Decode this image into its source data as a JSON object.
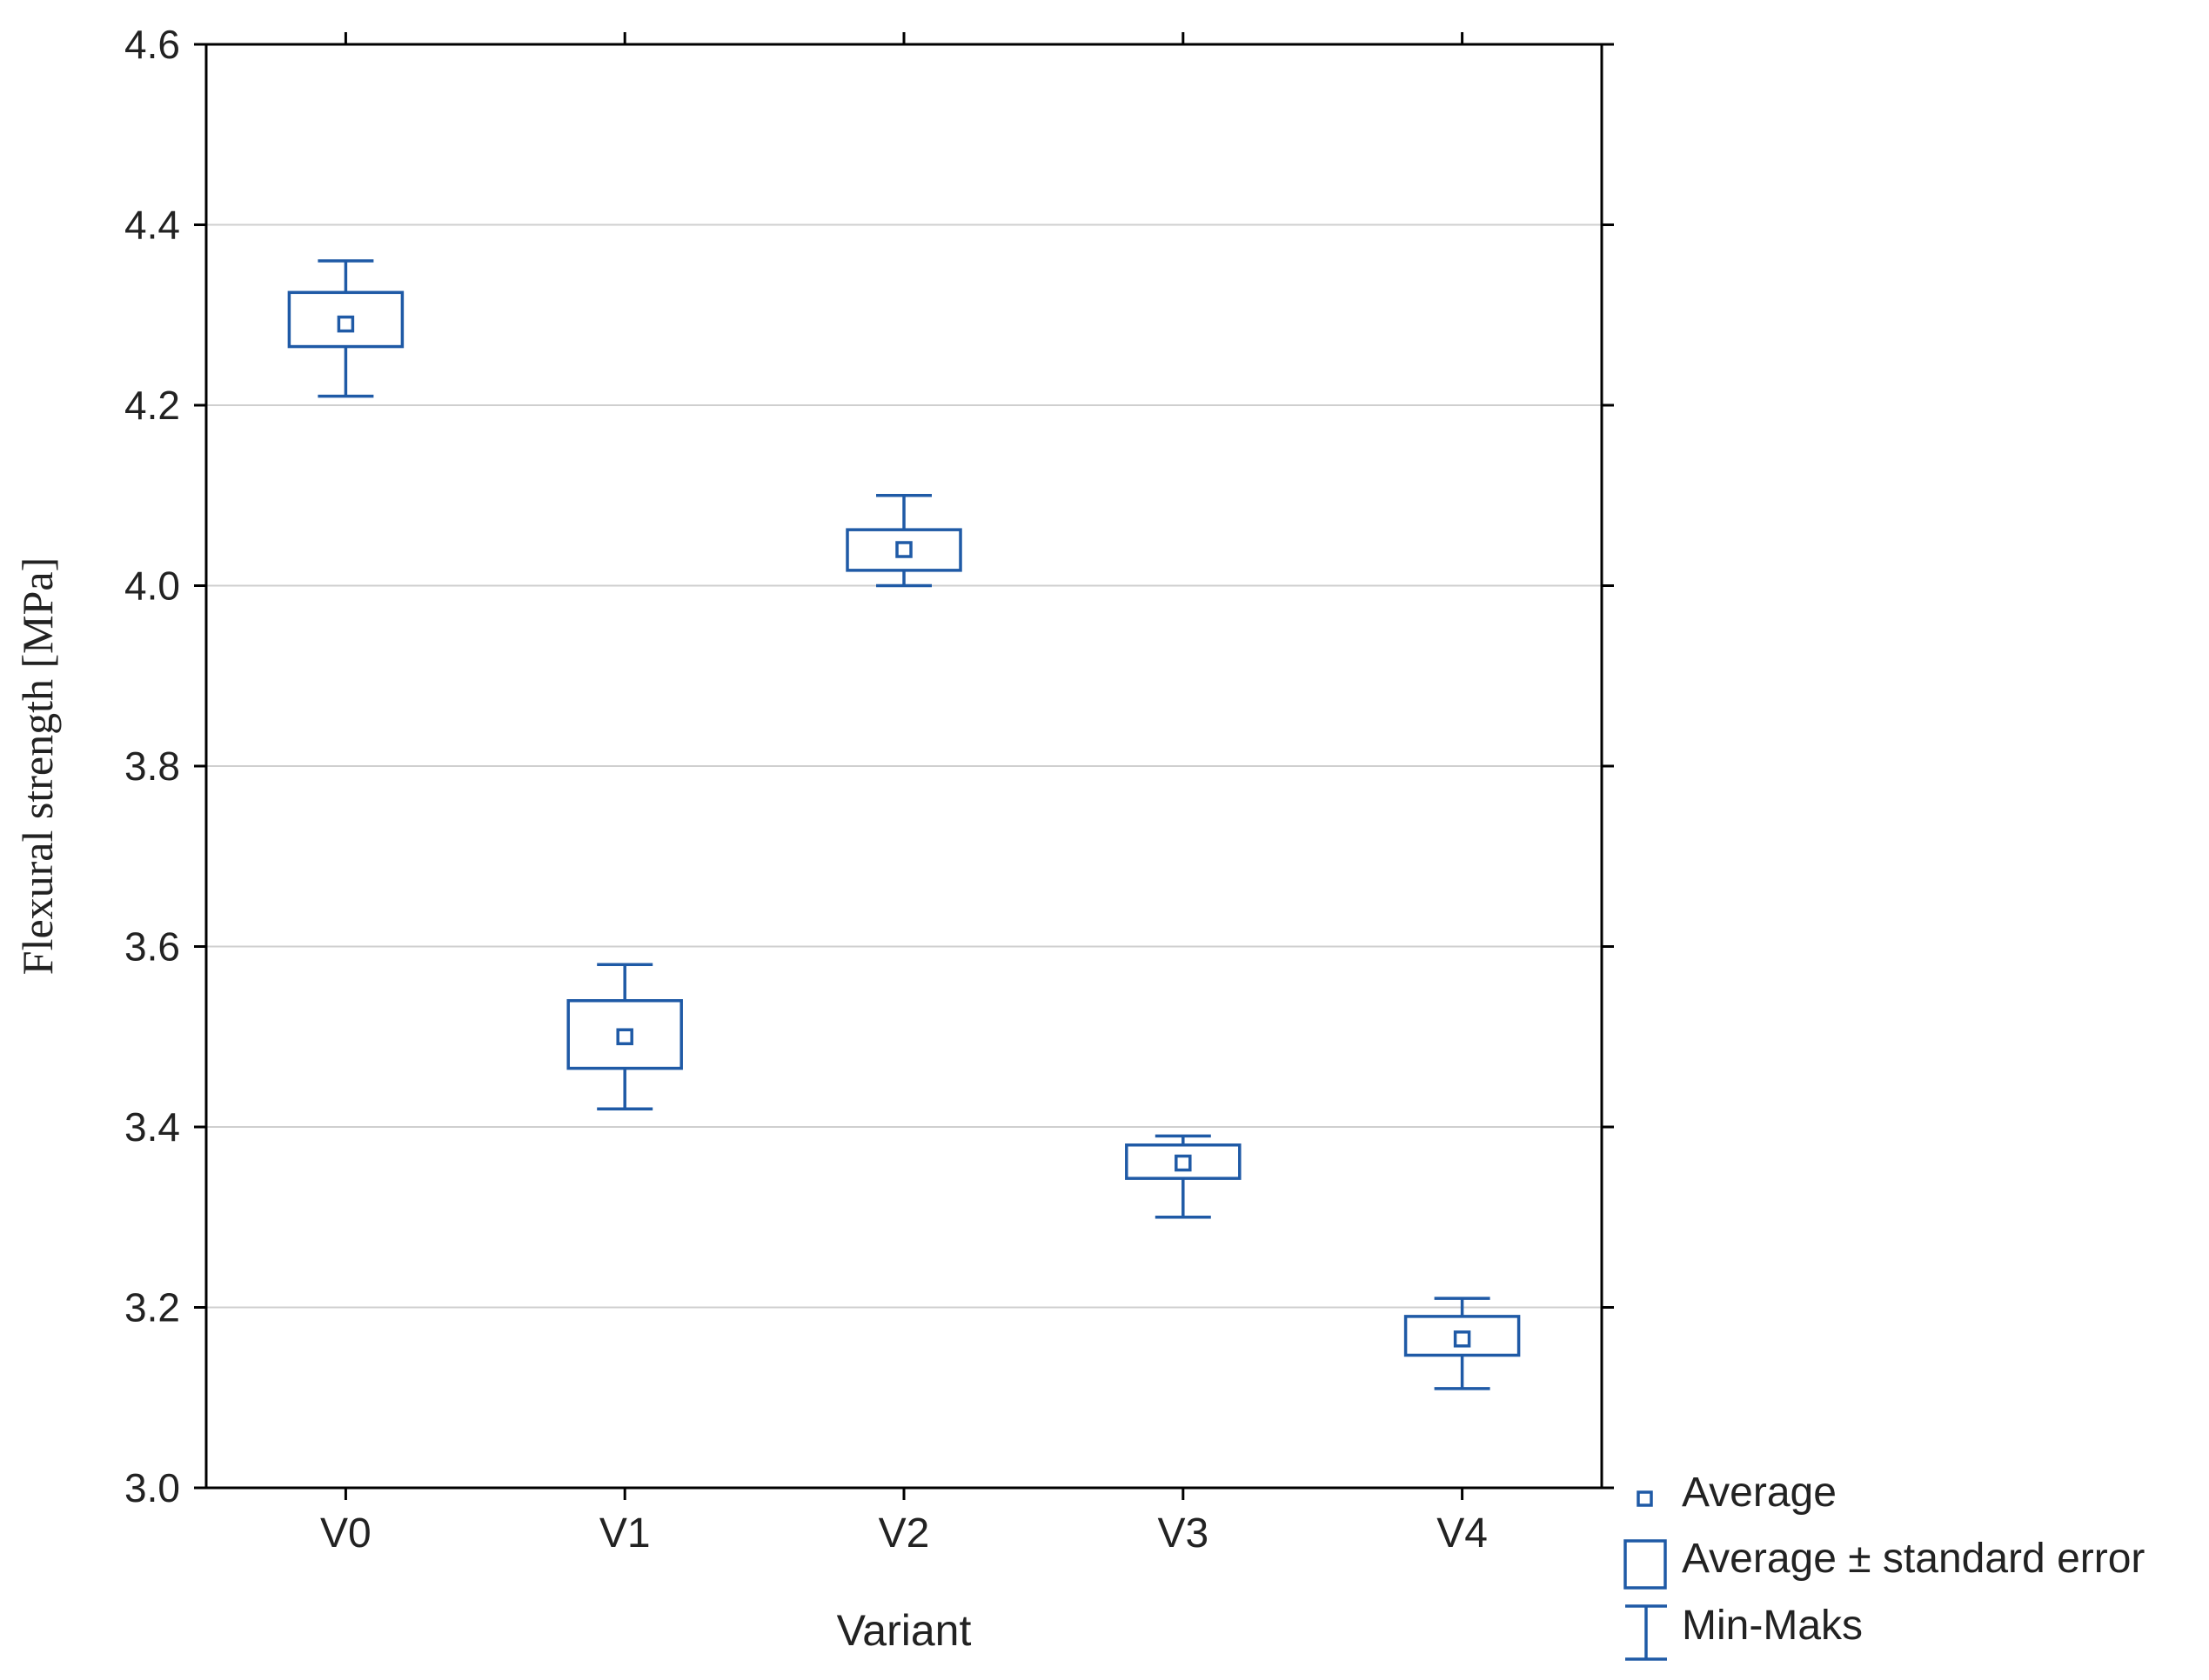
{
  "chart_data": {
    "type": "box",
    "title": "",
    "xlabel": "Variant",
    "ylabel": "Flexural strength [MPa]",
    "ylim": [
      3.0,
      4.6
    ],
    "yticks": [
      "3.0",
      "3.2",
      "3.4",
      "3.6",
      "3.8",
      "4.0",
      "4.2",
      "4.4",
      "4.6"
    ],
    "grid": true,
    "categories": [
      "V0",
      "V1",
      "V2",
      "V3",
      "V4"
    ],
    "series": [
      {
        "name": "Average",
        "values": [
          4.29,
          3.5,
          4.04,
          3.36,
          3.165
        ]
      },
      {
        "name": "Average - standard error",
        "values": [
          4.265,
          3.465,
          4.017,
          3.343,
          3.147
        ]
      },
      {
        "name": "Average + standard error",
        "values": [
          4.325,
          3.54,
          4.062,
          3.38,
          3.19
        ]
      },
      {
        "name": "Min",
        "values": [
          4.21,
          3.42,
          4.0,
          3.3,
          3.11
        ]
      },
      {
        "name": "Max",
        "values": [
          4.36,
          3.58,
          4.1,
          3.39,
          3.21
        ]
      }
    ],
    "legend": {
      "position": "bottom-right",
      "entries": [
        "Average",
        "Average ± standard error",
        "Min-Maks"
      ]
    },
    "colors": {
      "marks": "#1f5aa6",
      "grid": "#cfcfcf",
      "axis": "#000000"
    }
  }
}
